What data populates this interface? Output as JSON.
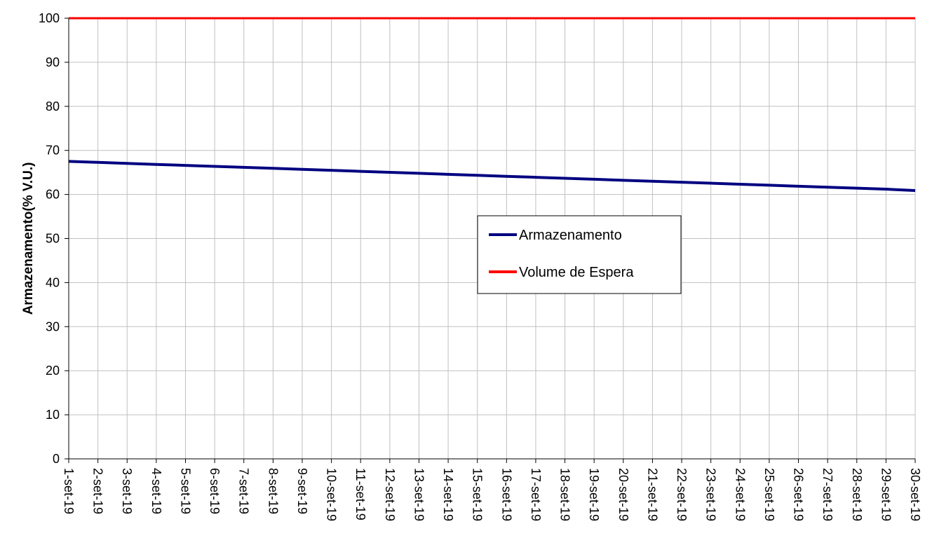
{
  "chart_data": {
    "type": "line",
    "title": "",
    "xlabel": "",
    "ylabel": "Armazenamento(% V.U.)",
    "ylim": [
      0,
      100
    ],
    "yticks": [
      0,
      10,
      20,
      30,
      40,
      50,
      60,
      70,
      80,
      90,
      100
    ],
    "grid": true,
    "legend_position": "center-right",
    "x": [
      "1-set-19",
      "2-set-19",
      "3-set-19",
      "4-set-19",
      "5-set-19",
      "6-set-19",
      "7-set-19",
      "8-set-19",
      "9-set-19",
      "10-set-19",
      "11-set-19",
      "12-set-19",
      "13-set-19",
      "14-set-19",
      "15-set-19",
      "16-set-19",
      "17-set-19",
      "18-set-19",
      "19-set-19",
      "20-set-19",
      "21-set-19",
      "22-set-19",
      "23-set-19",
      "24-set-19",
      "25-set-19",
      "26-set-19",
      "27-set-19",
      "28-set-19",
      "29-set-19",
      "30-set-19"
    ],
    "series": [
      {
        "name": "Armazenamento",
        "color": "#000080",
        "values": [
          67.5,
          67.28,
          67.05,
          66.82,
          66.6,
          66.38,
          66.15,
          65.93,
          65.7,
          65.48,
          65.25,
          65.03,
          64.8,
          64.57,
          64.35,
          64.12,
          63.9,
          63.67,
          63.45,
          63.22,
          63.0,
          62.77,
          62.55,
          62.32,
          62.1,
          61.87,
          61.65,
          61.42,
          61.2,
          60.9
        ]
      },
      {
        "name": "Volume de Espera",
        "color": "#ff0000",
        "values": [
          100,
          100,
          100,
          100,
          100,
          100,
          100,
          100,
          100,
          100,
          100,
          100,
          100,
          100,
          100,
          100,
          100,
          100,
          100,
          100,
          100,
          100,
          100,
          100,
          100,
          100,
          100,
          100,
          100,
          100
        ]
      }
    ]
  }
}
